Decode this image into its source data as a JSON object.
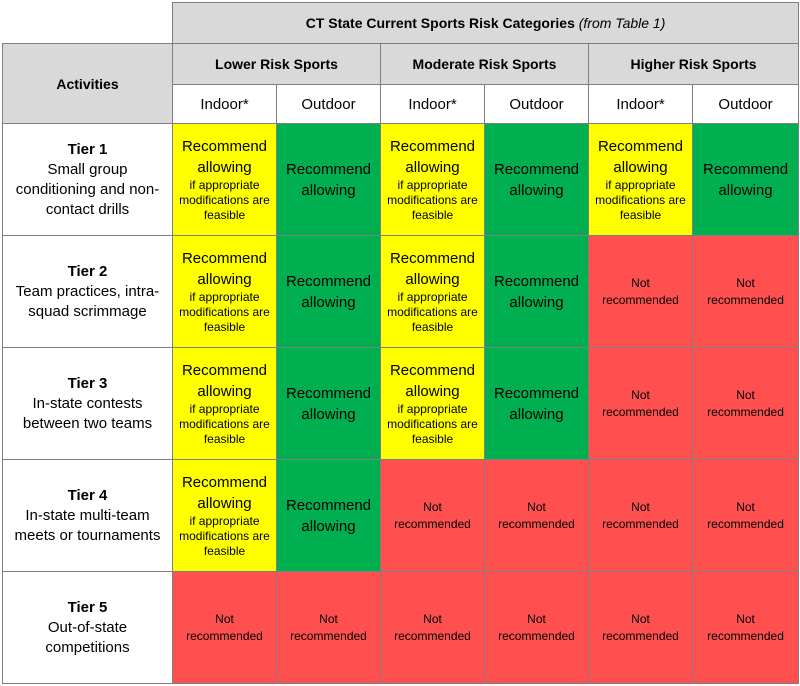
{
  "header": {
    "title": "CT State Current Sports Risk Categories",
    "title_note": "(from Table 1)",
    "activities_label": "Activities",
    "categories": [
      "Lower Risk Sports",
      "Moderate Risk Sports",
      "Higher Risk Sports"
    ],
    "indoor_label": "Indoor*",
    "outdoor_label": "Outdoor"
  },
  "labels": {
    "recommend": "Recommend allowing",
    "condition": "if appropriate modifications are feasible",
    "not_recommended": "Not recommended"
  },
  "colors": {
    "yellow": "#ffff00",
    "green": "#00b050",
    "red": "#ff4f4f",
    "header_gray": "#d9d9d9"
  },
  "tiers": [
    {
      "name": "Tier 1",
      "description": "Small group conditioning and non-contact drills",
      "cells": [
        "conditional",
        "recommend",
        "conditional",
        "recommend",
        "conditional",
        "recommend"
      ]
    },
    {
      "name": "Tier 2",
      "description": "Team practices, intra-squad scrimmage",
      "cells": [
        "conditional",
        "recommend",
        "conditional",
        "recommend",
        "not",
        "not"
      ]
    },
    {
      "name": "Tier 3",
      "description": "In-state contests between two teams",
      "cells": [
        "conditional",
        "recommend",
        "conditional",
        "recommend",
        "not",
        "not"
      ]
    },
    {
      "name": "Tier 4",
      "description": "In-state multi-team meets or tournaments",
      "cells": [
        "conditional",
        "recommend",
        "not",
        "not",
        "not",
        "not"
      ]
    },
    {
      "name": "Tier 5",
      "description": "Out-of-state competitions",
      "cells": [
        "not",
        "not",
        "not",
        "not",
        "not",
        "not"
      ]
    }
  ]
}
